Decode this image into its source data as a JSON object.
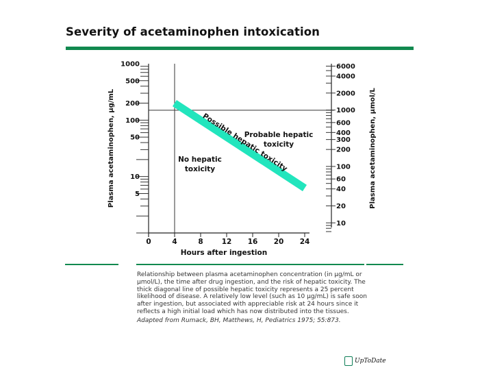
{
  "title": "Severity of acetaminophen intoxication",
  "colors": {
    "accent_green": "#11894f",
    "band": "#22e5bd",
    "text": "#111111"
  },
  "caption": {
    "body": "Relationship between plasma acetaminophen concentration (in μg/mL or μmol/L), the time after drug ingestion, and the risk of hepatic toxicity. The thick diagonal line of possible hepatic toxicity represents a 25 percent likelihood of disease. A relatively low level (such as 10 μg/mL) is safe soon after ingestion, but associated with appreciable risk at 24 hours since it reflects a high initial load which has now distributed into the tissues.",
    "source": "Adapted from Rumack, BH, Matthews, H, Pediatrics 1975; 55:873."
  },
  "logo": {
    "text": "UpToDate",
    "icon": "uptodate-logo-icon"
  },
  "chart_data": {
    "type": "line",
    "xlabel": "Hours after ingestion",
    "ylabel_left": "Plasma acetaminophen, μg/mL",
    "ylabel_right": "Plasma acetaminophen, μmol/L",
    "xlim": [
      0,
      24
    ],
    "x_ticks": [
      "0",
      "4",
      "8",
      "12",
      "16",
      "20",
      "24"
    ],
    "yscale": "log",
    "ylim_left": [
      1,
      1000
    ],
    "y_ticks_left": [
      "1000",
      "500",
      "200",
      "100",
      "50",
      "10",
      "5"
    ],
    "y_ticks_right": [
      "6000",
      "4000",
      "2000",
      "1000",
      "600",
      "400",
      "300",
      "200",
      "100",
      "60",
      "40",
      "20",
      "10"
    ],
    "horizontal_lines": [
      150
    ],
    "vertical_lines": [
      4
    ],
    "series": [
      {
        "name": "Possible hepatic toxicity",
        "x": [
          4,
          24
        ],
        "y": [
          200,
          6.25
        ]
      }
    ],
    "annotations": {
      "band_label": "Possible hepatic toxicity",
      "probable": [
        "Probable hepatic",
        "toxicity"
      ],
      "none": [
        "No hepatic",
        "toxicity"
      ]
    }
  }
}
